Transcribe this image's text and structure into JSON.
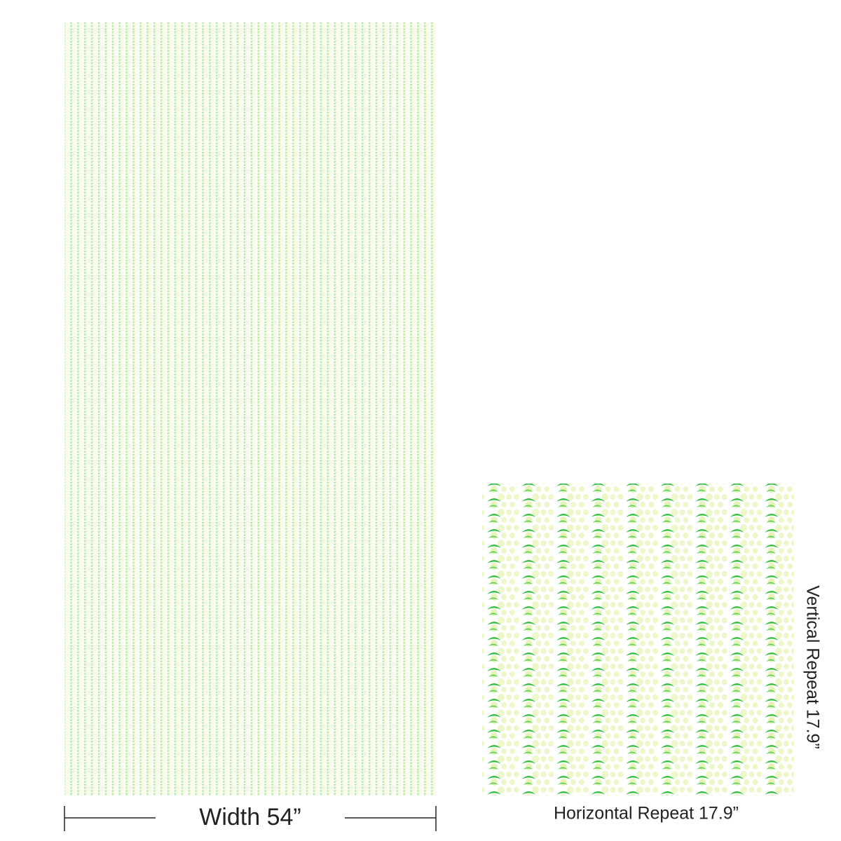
{
  "width_label": "Width 54”",
  "horizontal_repeat_label": "Horizontal Repeat 17.9”",
  "vertical_repeat_label": "Vertical Repeat 17.9”"
}
